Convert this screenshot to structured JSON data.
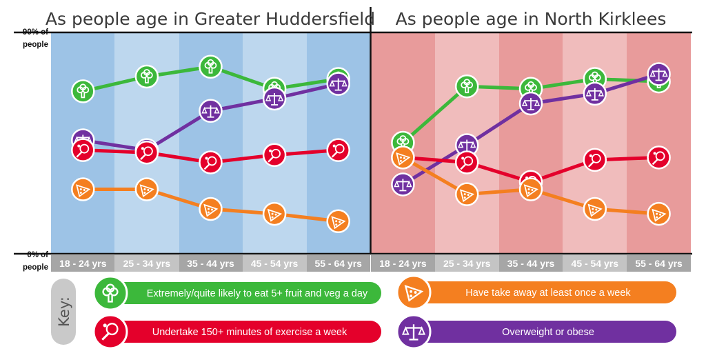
{
  "colors": {
    "fruit": "#3cb83b",
    "exercise": "#e4002b",
    "takeaway": "#f47f20",
    "overweight": "#7030a0"
  },
  "axis": {
    "top_label_1": "90% of",
    "top_label_2": "people",
    "bottom_label_1": "0% of",
    "bottom_label_2": "people"
  },
  "key": {
    "label": "Key:",
    "items": [
      {
        "series": "fruit",
        "label": "Extremely/quite likely to eat 5+ fruit and veg a day",
        "icon": "broccoli-icon"
      },
      {
        "series": "takeaway",
        "label": "Have take away at least once a week",
        "icon": "pizza-icon"
      },
      {
        "series": "exercise",
        "label": "Undertake 150+ minutes of exercise a week",
        "icon": "tennis-racket-icon"
      },
      {
        "series": "overweight",
        "label": "Overweight or obese",
        "icon": "scales-icon"
      }
    ]
  },
  "chart_data": [
    {
      "type": "line",
      "title": "As people age in Greater Huddersfield",
      "categories": [
        "18 - 24 yrs",
        "25 - 34 yrs",
        "35 - 44 yrs",
        "45 - 54 yrs",
        "55 - 64 yrs"
      ],
      "ylim": [
        0,
        90
      ],
      "series": [
        {
          "key": "fruit",
          "values": [
            66,
            72,
            76,
            67,
            71
          ]
        },
        {
          "key": "overweight",
          "values": [
            46,
            42,
            58,
            63,
            69
          ]
        },
        {
          "key": "exercise",
          "values": [
            42,
            41,
            37,
            40,
            42
          ]
        },
        {
          "key": "takeaway",
          "values": [
            26,
            26,
            18,
            16,
            13
          ]
        }
      ]
    },
    {
      "type": "line",
      "title": "As people age in North Kirklees",
      "categories": [
        "18 - 24 yrs",
        "25 - 34 yrs",
        "35 - 44 yrs",
        "45 - 54 yrs",
        "55 - 64 yrs"
      ],
      "ylim": [
        0,
        90
      ],
      "series": [
        {
          "key": "fruit",
          "values": [
            45,
            68,
            67,
            71,
            70
          ]
        },
        {
          "key": "overweight",
          "values": [
            28,
            44,
            61,
            65,
            73
          ]
        },
        {
          "key": "exercise",
          "values": [
            39,
            37,
            29,
            38,
            39
          ]
        },
        {
          "key": "takeaway",
          "values": [
            39,
            24,
            26,
            18,
            16
          ]
        }
      ]
    }
  ]
}
